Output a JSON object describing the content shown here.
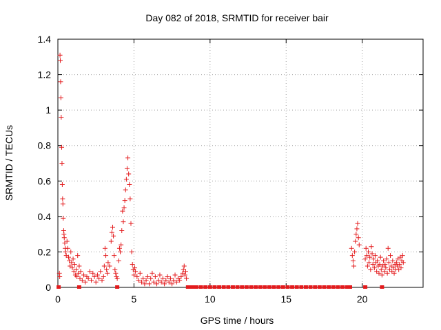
{
  "chart_data": {
    "type": "scatter",
    "title": "Day 082 of 2018, SRMTID for receiver bair",
    "xlabel": "GPS time / hours",
    "ylabel": "SRMTID / TECUs",
    "xlim": [
      0,
      24
    ],
    "ylim": [
      0,
      1.4
    ],
    "xticks": [
      "0",
      "5",
      "10",
      "15",
      "20"
    ],
    "yticks": [
      "0",
      "0.2",
      "0.4",
      "0.6",
      "0.8",
      "1",
      "1.2",
      "1.4"
    ],
    "grid": true,
    "legend": "none",
    "marker": "plus",
    "color": "#e31a1c",
    "series": [
      {
        "points": [
          [
            0.1,
            0.08
          ],
          [
            0.12,
            0.06
          ],
          [
            0.14,
            1.31
          ],
          [
            0.16,
            1.28
          ],
          [
            0.18,
            1.16
          ],
          [
            0.2,
            1.07
          ],
          [
            0.22,
            0.96
          ],
          [
            0.25,
            0.79
          ],
          [
            0.27,
            0.7
          ],
          [
            0.29,
            0.58
          ],
          [
            0.31,
            0.5
          ],
          [
            0.33,
            0.47
          ],
          [
            0.35,
            0.39
          ],
          [
            0.38,
            0.32
          ],
          [
            0.4,
            0.3
          ],
          [
            0.42,
            0.28
          ],
          [
            0.45,
            0.25
          ],
          [
            0.48,
            0.22
          ],
          [
            0.5,
            0.2
          ],
          [
            0.55,
            0.18
          ],
          [
            0.6,
            0.26
          ],
          [
            0.65,
            0.22
          ],
          [
            0.7,
            0.17
          ],
          [
            0.75,
            0.15
          ],
          [
            0.8,
            0.12
          ],
          [
            0.85,
            0.2
          ],
          [
            0.9,
            0.14
          ],
          [
            0.95,
            0.11
          ],
          [
            1.0,
            0.16
          ],
          [
            1.05,
            0.09
          ],
          [
            1.1,
            0.13
          ],
          [
            1.15,
            0.07
          ],
          [
            1.2,
            0.1
          ],
          [
            1.25,
            0.06
          ],
          [
            1.3,
            0.18
          ],
          [
            1.35,
            0.08
          ],
          [
            1.4,
            0.12
          ],
          [
            1.45,
            0.05
          ],
          [
            1.5,
            0.09
          ],
          [
            1.6,
            0.04
          ],
          [
            1.7,
            0.07
          ],
          [
            1.8,
            0.03
          ],
          [
            1.9,
            0.06
          ],
          [
            2.0,
            0.05
          ],
          [
            2.1,
            0.09
          ],
          [
            2.2,
            0.04
          ],
          [
            2.3,
            0.08
          ],
          [
            2.4,
            0.06
          ],
          [
            2.5,
            0.03
          ],
          [
            2.6,
            0.07
          ],
          [
            2.7,
            0.05
          ],
          [
            2.8,
            0.09
          ],
          [
            2.9,
            0.04
          ],
          [
            3.0,
            0.06
          ],
          [
            3.05,
            0.12
          ],
          [
            3.1,
            0.22
          ],
          [
            3.15,
            0.18
          ],
          [
            3.2,
            0.1
          ],
          [
            3.25,
            0.08
          ],
          [
            3.3,
            0.14
          ],
          [
            3.4,
            0.12
          ],
          [
            3.5,
            0.26
          ],
          [
            3.55,
            0.31
          ],
          [
            3.6,
            0.34
          ],
          [
            3.65,
            0.29
          ],
          [
            3.7,
            0.18
          ],
          [
            3.75,
            0.1
          ],
          [
            3.8,
            0.08
          ],
          [
            3.85,
            0.06
          ],
          [
            3.9,
            0.05
          ],
          [
            4.0,
            0.15
          ],
          [
            4.05,
            0.22
          ],
          [
            4.1,
            0.2
          ],
          [
            4.15,
            0.24
          ],
          [
            4.2,
            0.32
          ],
          [
            4.25,
            0.43
          ],
          [
            4.3,
            0.37
          ],
          [
            4.35,
            0.45
          ],
          [
            4.4,
            0.49
          ],
          [
            4.45,
            0.55
          ],
          [
            4.5,
            0.61
          ],
          [
            4.55,
            0.67
          ],
          [
            4.6,
            0.73
          ],
          [
            4.65,
            0.64
          ],
          [
            4.7,
            0.58
          ],
          [
            4.75,
            0.5
          ],
          [
            4.8,
            0.36
          ],
          [
            4.85,
            0.2
          ],
          [
            4.9,
            0.13
          ],
          [
            4.95,
            0.1
          ],
          [
            5.0,
            0.07
          ],
          [
            5.05,
            0.11
          ],
          [
            5.1,
            0.09
          ],
          [
            5.2,
            0.06
          ],
          [
            5.3,
            0.04
          ],
          [
            5.4,
            0.08
          ],
          [
            5.5,
            0.03
          ],
          [
            5.6,
            0.05
          ],
          [
            5.7,
            0.02
          ],
          [
            5.8,
            0.04
          ],
          [
            5.9,
            0.06
          ],
          [
            6.0,
            0.02
          ],
          [
            6.1,
            0.05
          ],
          [
            6.2,
            0.08
          ],
          [
            6.3,
            0.03
          ],
          [
            6.4,
            0.06
          ],
          [
            6.5,
            0.02
          ],
          [
            6.6,
            0.04
          ],
          [
            6.7,
            0.07
          ],
          [
            6.8,
            0.03
          ],
          [
            6.9,
            0.05
          ],
          [
            7.0,
            0.02
          ],
          [
            7.1,
            0.04
          ],
          [
            7.2,
            0.06
          ],
          [
            7.3,
            0.03
          ],
          [
            7.4,
            0.05
          ],
          [
            7.5,
            0.02
          ],
          [
            7.6,
            0.04
          ],
          [
            7.7,
            0.07
          ],
          [
            7.8,
            0.03
          ],
          [
            7.9,
            0.05
          ],
          [
            8.0,
            0.04
          ],
          [
            8.1,
            0.06
          ],
          [
            8.2,
            0.08
          ],
          [
            8.25,
            0.1
          ],
          [
            8.3,
            0.12
          ],
          [
            8.35,
            0.07
          ],
          [
            8.4,
            0.09
          ],
          [
            8.45,
            0.05
          ],
          [
            19.3,
            0.22
          ],
          [
            19.35,
            0.18
          ],
          [
            19.4,
            0.15
          ],
          [
            19.45,
            0.12
          ],
          [
            19.5,
            0.2
          ],
          [
            19.55,
            0.26
          ],
          [
            19.6,
            0.3
          ],
          [
            19.65,
            0.33
          ],
          [
            19.7,
            0.36
          ],
          [
            19.75,
            0.28
          ],
          [
            19.8,
            0.24
          ],
          [
            20.2,
            0.16
          ],
          [
            20.25,
            0.22
          ],
          [
            20.3,
            0.18
          ],
          [
            20.35,
            0.12
          ],
          [
            20.4,
            0.2
          ],
          [
            20.45,
            0.14
          ],
          [
            20.5,
            0.17
          ],
          [
            20.55,
            0.1
          ],
          [
            20.6,
            0.23
          ],
          [
            20.65,
            0.19
          ],
          [
            20.7,
            0.13
          ],
          [
            20.75,
            0.16
          ],
          [
            20.8,
            0.11
          ],
          [
            20.85,
            0.18
          ],
          [
            20.9,
            0.14
          ],
          [
            20.95,
            0.09
          ],
          [
            21.0,
            0.15
          ],
          [
            21.05,
            0.12
          ],
          [
            21.1,
            0.08
          ],
          [
            21.15,
            0.13
          ],
          [
            21.2,
            0.17
          ],
          [
            21.25,
            0.1
          ],
          [
            21.3,
            0.07
          ],
          [
            21.35,
            0.12
          ],
          [
            21.4,
            0.15
          ],
          [
            21.45,
            0.09
          ],
          [
            21.5,
            0.13
          ],
          [
            21.55,
            0.11
          ],
          [
            21.6,
            0.16
          ],
          [
            21.65,
            0.08
          ],
          [
            21.7,
            0.22
          ],
          [
            21.75,
            0.14
          ],
          [
            21.8,
            0.1
          ],
          [
            21.85,
            0.18
          ],
          [
            21.9,
            0.12
          ],
          [
            21.95,
            0.09
          ],
          [
            22.0,
            0.15
          ],
          [
            22.05,
            0.11
          ],
          [
            22.1,
            0.08
          ],
          [
            22.15,
            0.13
          ],
          [
            22.2,
            0.1
          ],
          [
            22.25,
            0.14
          ],
          [
            22.3,
            0.12
          ],
          [
            22.35,
            0.16
          ],
          [
            22.4,
            0.1
          ],
          [
            22.45,
            0.13
          ],
          [
            22.5,
            0.17
          ],
          [
            22.55,
            0.11
          ],
          [
            22.6,
            0.15
          ],
          [
            22.65,
            0.18
          ],
          [
            22.7,
            0.14
          ]
        ],
        "zero_points": [
          0.05,
          1.4,
          3.9,
          8.55,
          8.7,
          8.9,
          9.1,
          9.4,
          9.7,
          10.0,
          10.3,
          10.6,
          10.9,
          11.2,
          11.5,
          11.8,
          12.1,
          12.4,
          12.7,
          13.0,
          13.3,
          13.6,
          13.9,
          14.2,
          14.5,
          14.8,
          15.1,
          15.4,
          15.7,
          16.0,
          16.3,
          16.6,
          16.9,
          17.2,
          17.5,
          17.8,
          18.1,
          18.4,
          18.7,
          19.0,
          19.2,
          20.2,
          21.3
        ]
      }
    ]
  }
}
